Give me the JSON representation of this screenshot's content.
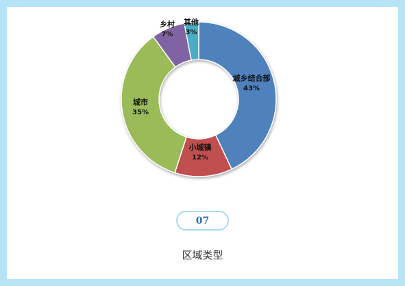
{
  "chart_data": {
    "type": "pie",
    "variant": "donut",
    "categories": [
      "城乡结合部",
      "小城镇",
      "城市",
      "乡村",
      "其他"
    ],
    "values": [
      43,
      12,
      35,
      7,
      3
    ],
    "value_labels": [
      "43%",
      "12%",
      "35%",
      "7%",
      "3%"
    ],
    "colors": [
      "#4f81bd",
      "#c0504d",
      "#9bbb59",
      "#8064a2",
      "#4bacc6"
    ],
    "start_angle_deg": 0,
    "direction": "clockwise"
  },
  "badge": {
    "text": "07"
  },
  "caption": {
    "text": "区域类型"
  }
}
